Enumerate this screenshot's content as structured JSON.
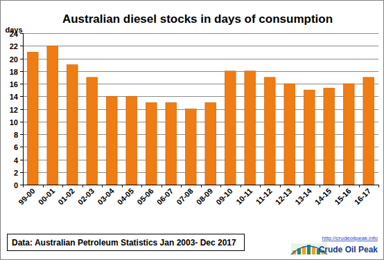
{
  "chart_data": {
    "type": "bar",
    "title": "Australian diesel stocks in days of consumption",
    "y_label": "days",
    "categories": [
      "99-00",
      "00-01",
      "01-02",
      "02-03",
      "03-04",
      "04-05",
      "05-06",
      "06-07",
      "07-08",
      "08-09",
      "09-10",
      "10-11",
      "11-12",
      "12-13",
      "13-14",
      "14-15",
      "15-16",
      "16-17"
    ],
    "values": [
      21,
      22,
      19,
      17,
      14,
      14,
      13,
      13,
      12,
      13,
      18,
      18,
      17,
      16,
      15,
      15.3,
      16,
      17
    ],
    "color": "#f07c14",
    "ylim": [
      0,
      24
    ],
    "yticks": [
      0,
      2,
      4,
      6,
      8,
      10,
      12,
      14,
      16,
      18,
      20,
      22,
      24
    ],
    "grid": true,
    "annotations": [
      "Data: Australian Petroleum Statistics Jan 2003- Dec 2017",
      "http://crudeoilpeak.info",
      "Crude Oil Peak"
    ]
  }
}
